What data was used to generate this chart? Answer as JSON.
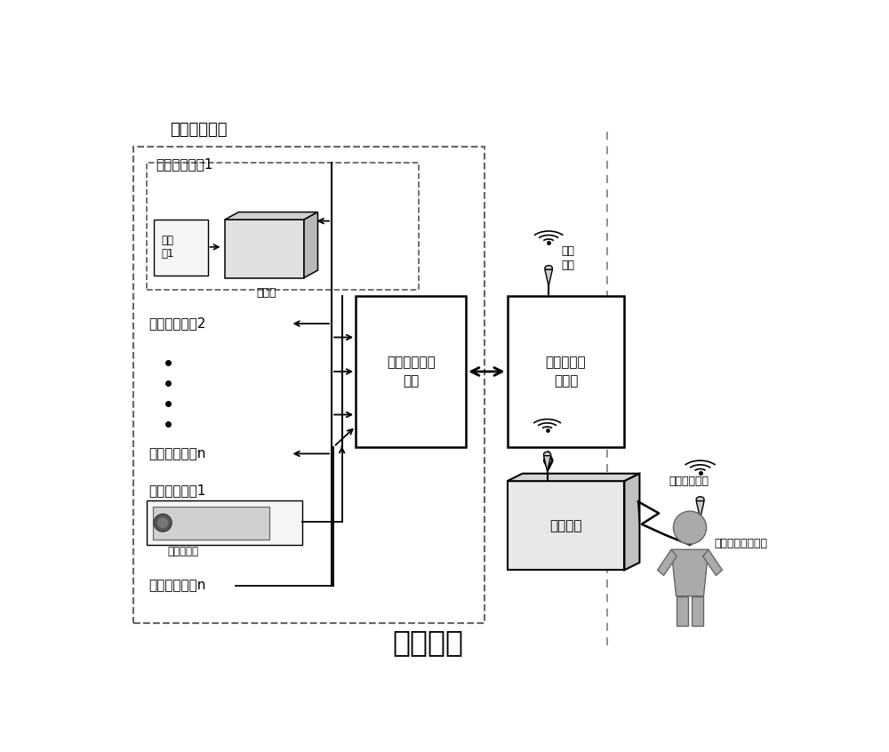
{
  "title": "舰上部分",
  "outer_dashed_label": "测量采集单元",
  "module1_label": "信号采集模块1",
  "sensor_label": "传感\n器1",
  "converter_label": "变换器",
  "module2_label": "信号采集模块2",
  "modulen_label": "信号采集模块n",
  "image_module1_label": "图像采集模块1",
  "camera_label": "网络摄像机",
  "image_modulen_label": "图像采集模块n",
  "data_exchange_label": "数据接入交换\n单元",
  "data_storage_label": "数据存储回\n收单元",
  "wireless_label": "无线\n定位",
  "satellite_label": "卫通设备",
  "satellite_link_label": "卫通无线链路",
  "ground_label": "地面远端控制中心",
  "bg_color": "#ffffff",
  "line_color": "#000000"
}
